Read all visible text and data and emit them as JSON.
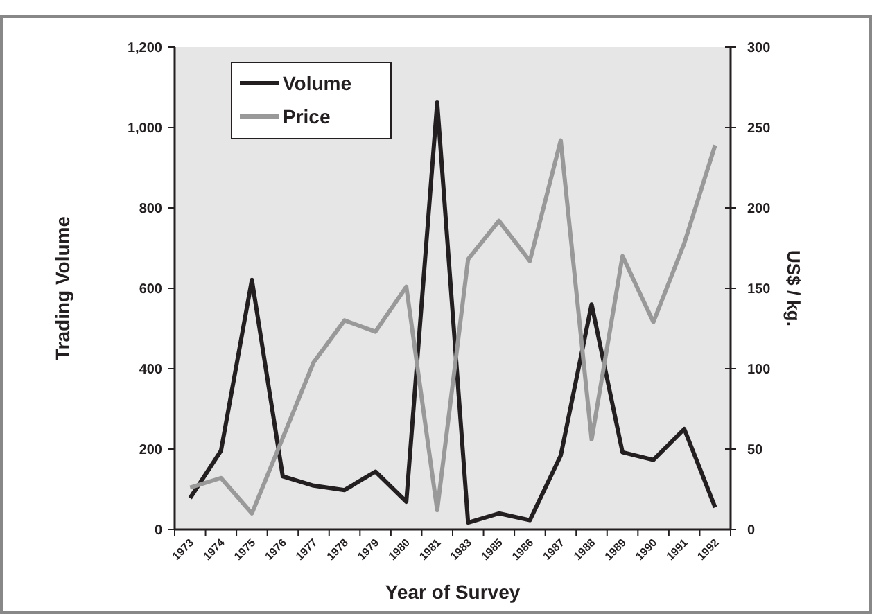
{
  "chart_data": {
    "type": "line",
    "xlabel": "Year of Survey",
    "ylabel": "Trading Volume",
    "y2label": "US$ / kg.",
    "categories": [
      "1973",
      "1974",
      "1975",
      "1976",
      "1977",
      "1978",
      "1979",
      "1980",
      "1981",
      "1983",
      "1985",
      "1986",
      "1987",
      "1988",
      "1989",
      "1990",
      "1991",
      "1992"
    ],
    "series": [
      {
        "name": "Volume",
        "color": "#231f20",
        "values": [
          78,
          196,
          621,
          132,
          109,
          98,
          144,
          69,
          1062,
          17,
          40,
          23,
          184,
          560,
          192,
          173,
          250,
          55
        ]
      },
      {
        "name": "Price",
        "color": "#999999",
        "axis": "y2",
        "values": [
          26,
          32,
          10,
          57,
          104,
          130,
          123,
          151,
          12,
          168,
          192,
          167,
          242,
          56,
          170,
          129,
          178,
          239
        ]
      }
    ],
    "ylim": [
      0,
      1200
    ],
    "yticks": [
      {
        "value": 0,
        "label": "0"
      },
      {
        "value": 200,
        "label": "200"
      },
      {
        "value": 400,
        "label": "400"
      },
      {
        "value": 600,
        "label": "600"
      },
      {
        "value": 800,
        "label": "800"
      },
      {
        "value": 1000,
        "label": "1,000"
      },
      {
        "value": 1200,
        "label": "1,200"
      }
    ],
    "y2lim": [
      0,
      300
    ],
    "y2ticks": [
      0,
      50,
      100,
      150,
      200,
      250,
      300
    ],
    "grid": false,
    "legend": "top left",
    "line_style": "solid",
    "marker": "none"
  }
}
